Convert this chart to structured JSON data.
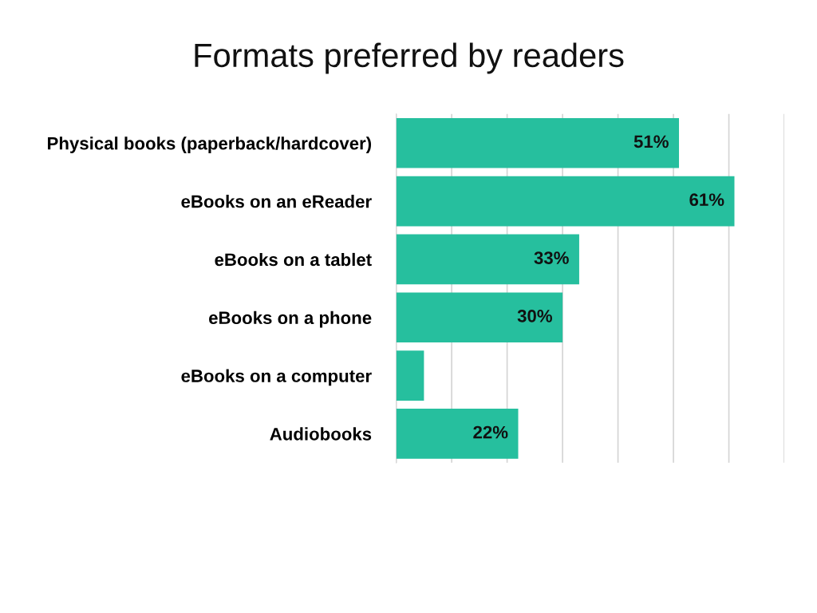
{
  "chart_data": {
    "type": "bar",
    "orientation": "horizontal",
    "title": "Formats preferred by readers",
    "categories": [
      "Physical books (paperback/hardcover)",
      "eBooks on an eReader",
      "eBooks on a tablet",
      "eBooks on a phone",
      "eBooks on a computer",
      "Audiobooks"
    ],
    "values": [
      51,
      61,
      33,
      30,
      5,
      22
    ],
    "color": "#26bf9e",
    "value_labels": [
      "51%",
      "61%",
      "33%",
      "30%",
      null,
      "22%"
    ],
    "xlim": [
      0,
      70
    ],
    "xticks": [
      {
        "value": 0,
        "label": null
      },
      {
        "value": 10,
        "label": null
      },
      {
        "value": 20,
        "label": null
      },
      {
        "value": 30,
        "label": null
      },
      {
        "value": 40,
        "label": null
      },
      {
        "value": 50,
        "label": null
      },
      {
        "value": 60,
        "label": null
      },
      {
        "value": 70,
        "label": null
      }
    ],
    "grid": "x",
    "tick_labels": "y"
  }
}
